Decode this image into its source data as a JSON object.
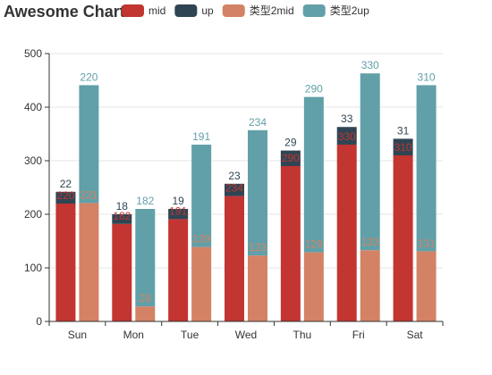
{
  "chart_data": {
    "type": "bar",
    "title": "Awesome Chart",
    "categories": [
      "Sun",
      "Mon",
      "Tue",
      "Wed",
      "Thu",
      "Fri",
      "Sat"
    ],
    "ylim": [
      0,
      500
    ],
    "yticks": [
      0,
      100,
      200,
      300,
      400,
      500
    ],
    "grid": true,
    "legend_position": "top",
    "stacked": true,
    "stacks": [
      {
        "series": [
          {
            "name": "mid",
            "color": "#c23531",
            "values": [
              220,
              182,
              191,
              234,
              290,
              330,
              310
            ],
            "label_color": "#c23531"
          },
          {
            "name": "up",
            "color": "#2f4554",
            "values": [
              22,
              18,
              19,
              23,
              29,
              33,
              31
            ],
            "label_color": "#2f4554"
          }
        ]
      },
      {
        "series": [
          {
            "name": "类型2mid",
            "color": "#d48265",
            "values": [
              221,
              28,
              139,
              123,
              129,
              133,
              131
            ],
            "label_color": "#d48265"
          },
          {
            "name": "类型2up",
            "color": "#61a0a8",
            "values": [
              220,
              182,
              191,
              234,
              290,
              330,
              310
            ],
            "label_color": "#61a0a8"
          }
        ]
      }
    ],
    "legend": [
      {
        "name": "mid",
        "color": "#c23531"
      },
      {
        "name": "up",
        "color": "#2f4554"
      },
      {
        "name": "类型2mid",
        "color": "#d48265"
      },
      {
        "name": "类型2up",
        "color": "#61a0a8"
      }
    ]
  }
}
